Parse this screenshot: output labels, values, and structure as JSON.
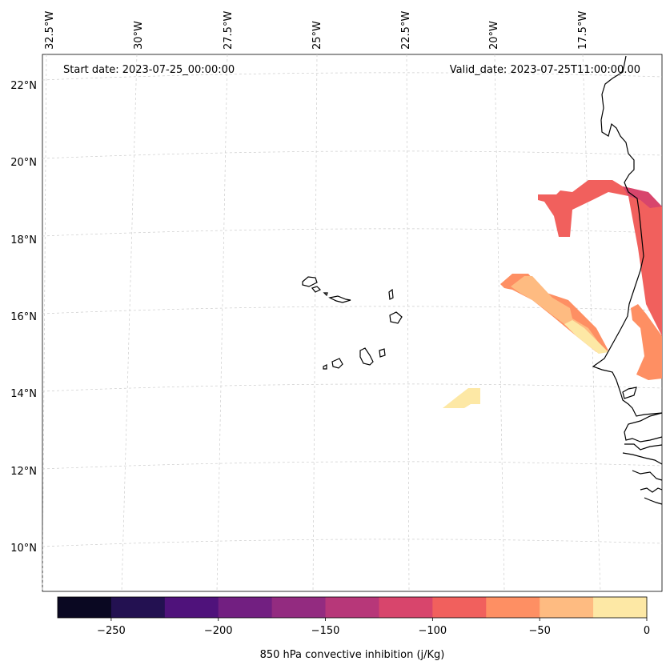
{
  "header": {
    "start_date": "Start date: 2023-07-25_00:00:00",
    "valid_date": "Valid_date: 2023-07-25T11:00:00.00"
  },
  "longitude_labels": [
    "32.5°W",
    "30°W",
    "27.5°W",
    "25°W",
    "22.5°W",
    "20°W",
    "17.5°W"
  ],
  "latitude_labels": [
    "22°N",
    "20°N",
    "18°N",
    "16°N",
    "14°N",
    "12°N",
    "10°N"
  ],
  "colorbar": {
    "label": "850 hPa convective inhibition (j/Kg)",
    "tick_labels": [
      "−250",
      "−200",
      "−150",
      "−100",
      "−50",
      "0"
    ],
    "range": [
      -275,
      0
    ],
    "bin_width": 25,
    "colors": [
      "#0a0822",
      "#231151",
      "#4f127b",
      "#721f81",
      "#932b80",
      "#b73779",
      "#d8456c",
      "#f1605d",
      "#fe8f63",
      "#febb81",
      "#fde8a5"
    ]
  },
  "map": {
    "region": "Cape Verde and West African coast",
    "cin_areas": [
      {
        "id": "mauritania-coast",
        "value_range": [
          -100,
          -75
        ]
      },
      {
        "id": "offshore-band",
        "value_range": [
          -50,
          -25
        ]
      },
      {
        "id": "south-patch",
        "value_range": [
          -25,
          0
        ]
      }
    ]
  }
}
